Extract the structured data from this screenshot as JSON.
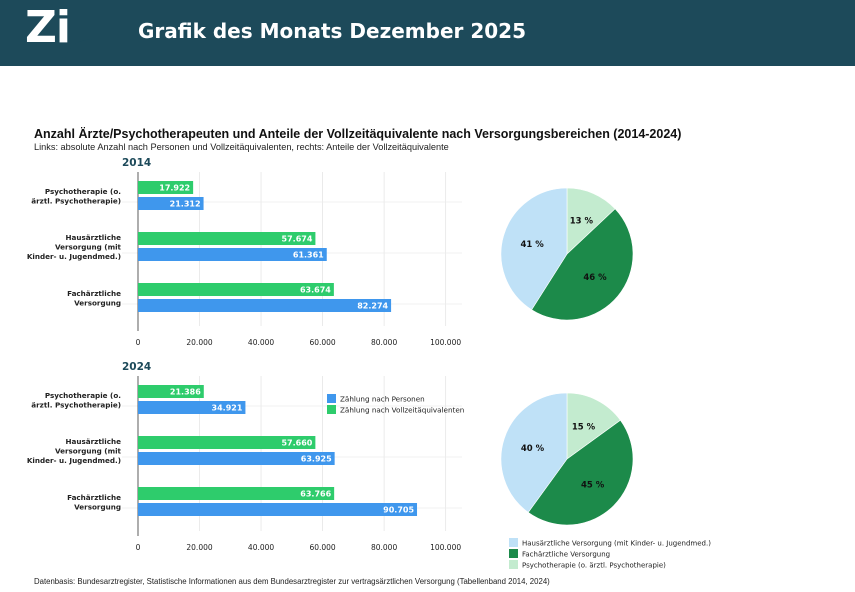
{
  "header": {
    "logo": "Zi",
    "title": "Grafik des Monats Dezember 2025"
  },
  "title": "Anzahl Ärzte/Psychotherapeuten und Anteile der Vollzeitäquivalente nach Versorgungsbereichen (2014-2024)",
  "subtitle": "Links: absolute Anzahl nach Personen und Vollzeitäquivalenten, rechts: Anteile der Vollzeitäquivalente",
  "source": "Datenbasis: Bundesarztregister, Statistische Informationen aus dem Bundesarztregister zur vertragsärztlichen Versorgung (Tabellenband 2014, 2024)",
  "colors": {
    "header_bg": "#1d4a5a",
    "personen": "#3f97ed",
    "vza": "#2ecc6c",
    "pie_haus": "#bfe1f7",
    "pie_fach": "#1c8a4a",
    "pie_psych": "#c3ebcf",
    "year_label": "#1d4a5a"
  },
  "chart_data": [
    {
      "type": "bar",
      "orientation": "horizontal",
      "title": "2014",
      "categories": [
        "Psychotherapie (o. ärztl. Psychotherapie)",
        "Hausärztliche Versorgung (mit Kinder- u. Jugendmed.)",
        "Fachärztliche Versorgung"
      ],
      "category_lines": [
        [
          "Psychotherapie (o.",
          "ärztl. Psychotherapie)"
        ],
        [
          "Hausärztliche",
          "Versorgung (mit",
          "Kinder- u. Jugendmed.)"
        ],
        [
          "Fachärztliche",
          "Versorgung"
        ]
      ],
      "series": [
        {
          "name": "Zählung nach Vollzeitäquivalenten",
          "values": [
            17922,
            57674,
            63674
          ],
          "labels": [
            "17.922",
            "57.674",
            "63.674"
          ]
        },
        {
          "name": "Zählung nach Personen",
          "values": [
            21312,
            61361,
            82274
          ],
          "labels": [
            "21.312",
            "61.361",
            "82.274"
          ]
        }
      ],
      "xlim": [
        0,
        105000
      ],
      "xticks": [
        0,
        20000,
        40000,
        60000,
        80000,
        100000
      ],
      "xtick_labels": [
        "0",
        "20.000",
        "40.000",
        "60.000",
        "80.000",
        "100.000"
      ]
    },
    {
      "type": "bar",
      "orientation": "horizontal",
      "title": "2024",
      "categories": [
        "Psychotherapie (o. ärztl. Psychotherapie)",
        "Hausärztliche Versorgung (mit Kinder- u. Jugendmed.)",
        "Fachärztliche Versorgung"
      ],
      "category_lines": [
        [
          "Psychotherapie (o.",
          "ärztl. Psychotherapie)"
        ],
        [
          "Hausärztliche",
          "Versorgung (mit",
          "Kinder- u. Jugendmed.)"
        ],
        [
          "Fachärztliche",
          "Versorgung"
        ]
      ],
      "series": [
        {
          "name": "Zählung nach Vollzeitäquivalenten",
          "values": [
            21386,
            57660,
            63766
          ],
          "labels": [
            "21.386",
            "57.660",
            "63.766"
          ]
        },
        {
          "name": "Zählung nach Personen",
          "values": [
            34921,
            63925,
            90705
          ],
          "labels": [
            "34.921",
            "63.925",
            "90.705"
          ]
        }
      ],
      "xlim": [
        0,
        105000
      ],
      "xticks": [
        0,
        20000,
        40000,
        60000,
        80000,
        100000
      ],
      "xtick_labels": [
        "0",
        "20.000",
        "40.000",
        "60.000",
        "80.000",
        "100.000"
      ],
      "legend": [
        "Zählung nach Personen",
        "Zählung nach Vollzeitäquivalenten"
      ]
    },
    {
      "type": "pie",
      "title": "2014",
      "slices": [
        {
          "name": "Psychotherapie (o. ärztl. Psychotherapie)",
          "value": 13,
          "label": "13 %"
        },
        {
          "name": "Fachärztliche Versorgung",
          "value": 46,
          "label": "46 %"
        },
        {
          "name": "Hausärztliche Versorgung (mit Kinder- u. Jugendmed.)",
          "value": 41,
          "label": "41 %"
        }
      ]
    },
    {
      "type": "pie",
      "title": "2024",
      "slices": [
        {
          "name": "Psychotherapie (o. ärztl. Psychotherapie)",
          "value": 15,
          "label": "15 %"
        },
        {
          "name": "Fachärztliche Versorgung",
          "value": 45,
          "label": "45 %"
        },
        {
          "name": "Hausärztliche Versorgung (mit Kinder- u. Jugendmed.)",
          "value": 40,
          "label": "40 %"
        }
      ],
      "legend": [
        "Hausärztliche Versorgung (mit Kinder- u. Jugendmed.)",
        "Fachärztliche Versorgung",
        "Psychotherapie (o. ärztl. Psychotherapie)"
      ]
    }
  ]
}
